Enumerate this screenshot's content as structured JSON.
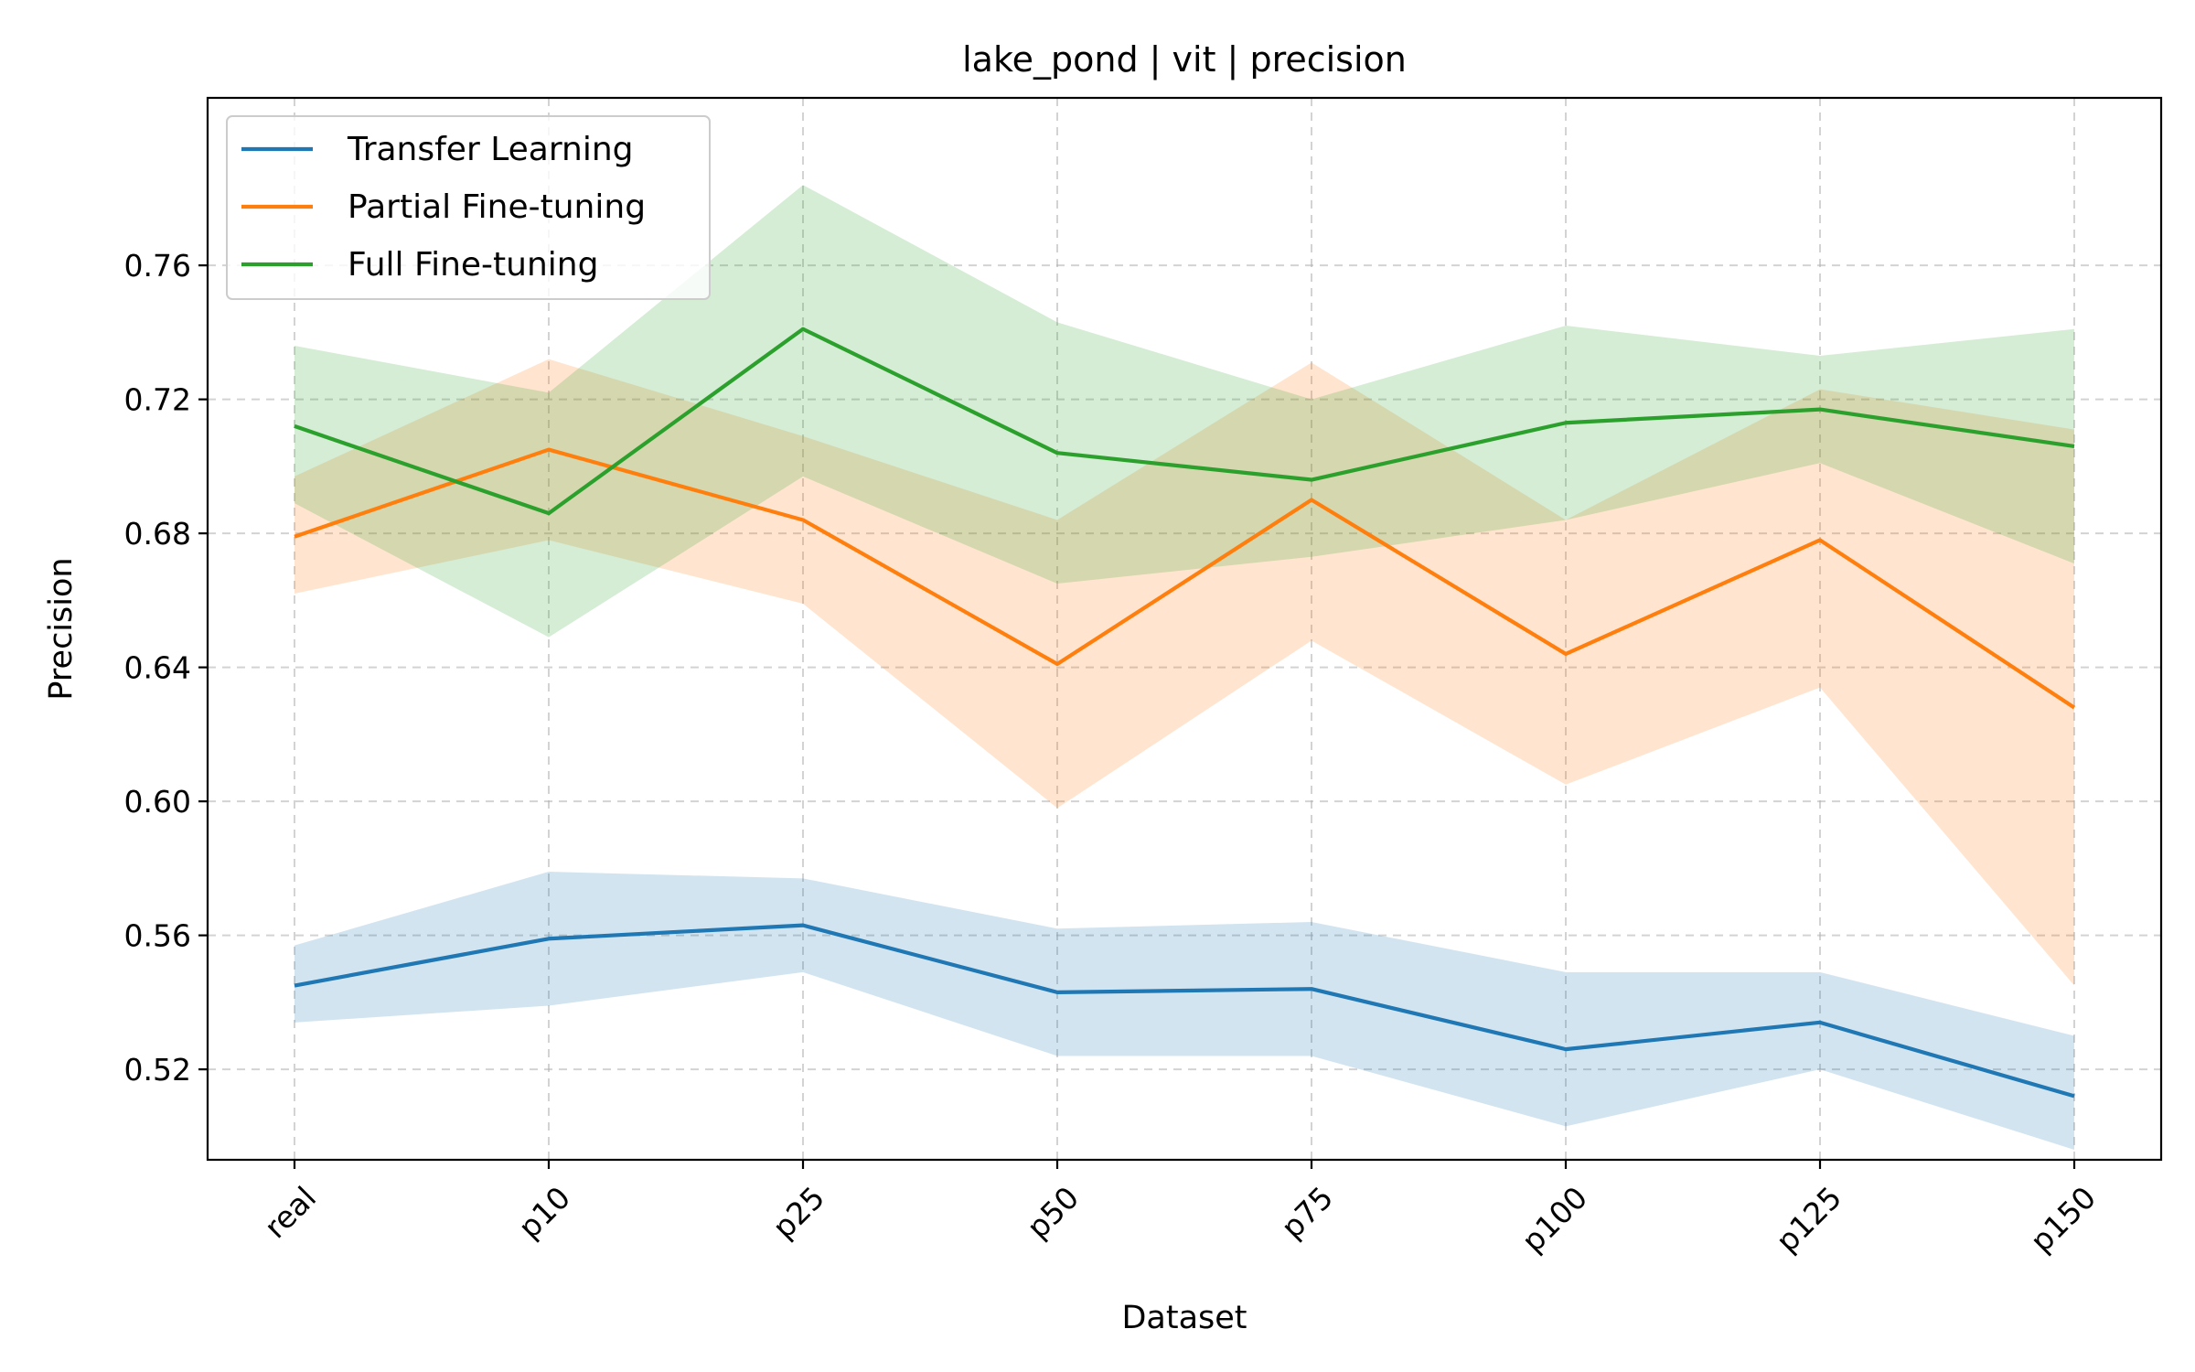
{
  "chart_data": {
    "type": "line",
    "title": "lake_pond | vit | precision",
    "xlabel": "Dataset",
    "ylabel": "Precision",
    "categories": [
      "real",
      "p10",
      "p25",
      "p50",
      "p75",
      "p100",
      "p125",
      "p150"
    ],
    "ylim": [
      0.493,
      0.81
    ],
    "yticks": [
      0.52,
      0.56,
      0.6,
      0.64,
      0.68,
      0.72,
      0.76
    ],
    "ytick_labels": [
      "0.52",
      "0.56",
      "0.60",
      "0.64",
      "0.68",
      "0.72",
      "0.76"
    ],
    "grid": true,
    "legend_position": "top-left",
    "series": [
      {
        "name": "Transfer Learning",
        "color": "#1f77b4",
        "values": [
          0.545,
          0.559,
          0.563,
          0.543,
          0.544,
          0.526,
          0.534,
          0.512
        ],
        "lower": [
          0.534,
          0.539,
          0.549,
          0.524,
          0.524,
          0.503,
          0.52,
          0.496
        ],
        "upper": [
          0.557,
          0.579,
          0.577,
          0.562,
          0.564,
          0.549,
          0.549,
          0.53
        ]
      },
      {
        "name": "Partial Fine-tuning",
        "color": "#ff7f0e",
        "values": [
          0.679,
          0.705,
          0.684,
          0.641,
          0.69,
          0.644,
          0.678,
          0.628
        ],
        "lower": [
          0.662,
          0.678,
          0.659,
          0.598,
          0.648,
          0.605,
          0.634,
          0.545
        ],
        "upper": [
          0.697,
          0.732,
          0.709,
          0.684,
          0.731,
          0.684,
          0.723,
          0.711
        ]
      },
      {
        "name": "Full Fine-tuning",
        "color": "#2ca02c",
        "values": [
          0.712,
          0.686,
          0.741,
          0.704,
          0.696,
          0.713,
          0.717,
          0.706
        ],
        "lower": [
          0.689,
          0.649,
          0.697,
          0.665,
          0.673,
          0.684,
          0.701,
          0.671
        ],
        "upper": [
          0.736,
          0.722,
          0.784,
          0.743,
          0.72,
          0.742,
          0.733,
          0.741
        ]
      }
    ]
  }
}
